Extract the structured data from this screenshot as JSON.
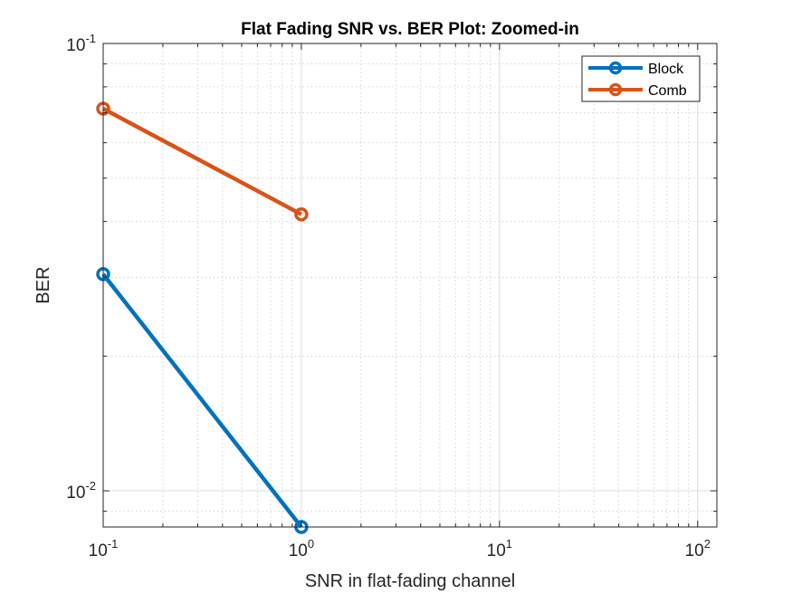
{
  "chart_data": {
    "type": "line",
    "title": "Flat Fading SNR vs. BER Plot: Zoomed-in",
    "xlabel": "SNR in flat-fading channel",
    "ylabel": "BER",
    "xscale": "log",
    "yscale": "log",
    "xlim": [
      0.1,
      125
    ],
    "ylim": [
      0.0083,
      0.1
    ],
    "grid": true,
    "minor_grid": true,
    "legend_position": "top-right",
    "x_ticks": [
      {
        "base": "10",
        "exp": "-1"
      },
      {
        "base": "10",
        "exp": "0"
      },
      {
        "base": "10",
        "exp": "1"
      },
      {
        "base": "10",
        "exp": "2"
      }
    ],
    "y_ticks": [
      {
        "base": "10",
        "exp": "-2"
      },
      {
        "base": "10",
        "exp": "-1"
      }
    ],
    "series": [
      {
        "name": "Block",
        "color": "#0072BD",
        "x": [
          0.1,
          1
        ],
        "y": [
          0.0305,
          0.0083
        ]
      },
      {
        "name": "Comb",
        "color": "#D95319",
        "x": [
          0.1,
          1
        ],
        "y": [
          0.0715,
          0.0415
        ]
      }
    ]
  }
}
